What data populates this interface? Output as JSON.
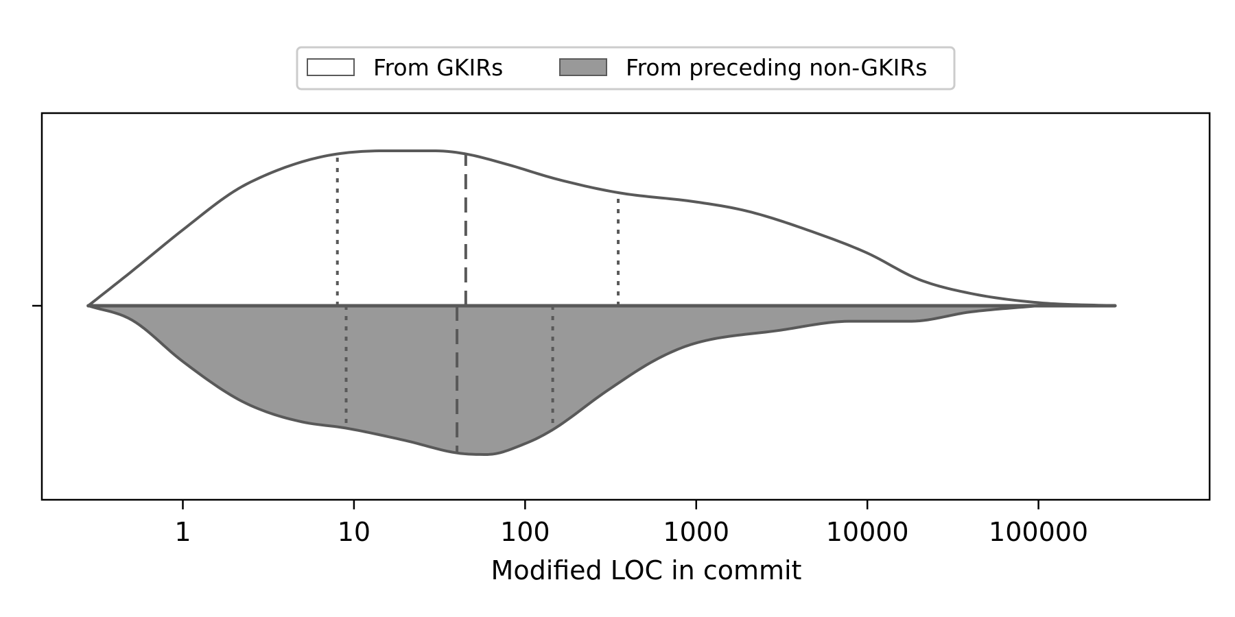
{
  "chart_data": {
    "type": "violin",
    "orientation": "horizontal",
    "split": true,
    "xscale": "log",
    "xlabel": "Modified LOC in commit",
    "xticks": [
      1,
      10,
      100,
      1000,
      10000,
      100000
    ],
    "xtick_labels": [
      "1",
      "10",
      "100",
      "1000",
      "10000",
      "100000"
    ],
    "xlim": [
      0.15,
      1000000
    ],
    "legend": {
      "placement": "top-center, outside plot"
    },
    "inner": "quartile",
    "colors": {
      "line": "#595959",
      "upper_fill": "#ffffff",
      "lower_fill": "#999999",
      "frame": "#000000"
    },
    "series": [
      {
        "name": "From GKIRs",
        "side": "upper",
        "fill": "#ffffff",
        "range": [
          0.28,
          280000
        ],
        "quartiles": {
          "q1": 8,
          "median": 45,
          "q3": 350
        },
        "density": [
          [
            0.28,
            0.0
          ],
          [
            0.5,
            0.22
          ],
          [
            1,
            0.49
          ],
          [
            2,
            0.74
          ],
          [
            3,
            0.84
          ],
          [
            5,
            0.93
          ],
          [
            8,
            0.98
          ],
          [
            15,
            1.0
          ],
          [
            30,
            1.0
          ],
          [
            45,
            0.98
          ],
          [
            80,
            0.91
          ],
          [
            150,
            0.82
          ],
          [
            350,
            0.73
          ],
          [
            1000,
            0.67
          ],
          [
            2000,
            0.61
          ],
          [
            5000,
            0.47
          ],
          [
            10000,
            0.34
          ],
          [
            20000,
            0.17
          ],
          [
            40000,
            0.08
          ],
          [
            100000,
            0.02
          ],
          [
            280000,
            0.0
          ]
        ]
      },
      {
        "name": "From preceding non-GKIRs",
        "side": "lower",
        "fill": "#999999",
        "range": [
          0.28,
          100000
        ],
        "quartiles": {
          "q1": 9,
          "median": 40,
          "q3": 145
        },
        "density": [
          [
            0.28,
            0.0
          ],
          [
            0.5,
            0.09
          ],
          [
            1,
            0.36
          ],
          [
            2,
            0.59
          ],
          [
            3,
            0.68
          ],
          [
            5,
            0.75
          ],
          [
            9,
            0.79
          ],
          [
            20,
            0.87
          ],
          [
            40,
            0.95
          ],
          [
            60,
            0.96
          ],
          [
            100,
            0.89
          ],
          [
            145,
            0.8
          ],
          [
            300,
            0.55
          ],
          [
            600,
            0.34
          ],
          [
            1000,
            0.24
          ],
          [
            3000,
            0.16
          ],
          [
            8000,
            0.1
          ],
          [
            18000,
            0.1
          ],
          [
            40000,
            0.04
          ],
          [
            100000,
            0.0
          ]
        ]
      }
    ]
  }
}
